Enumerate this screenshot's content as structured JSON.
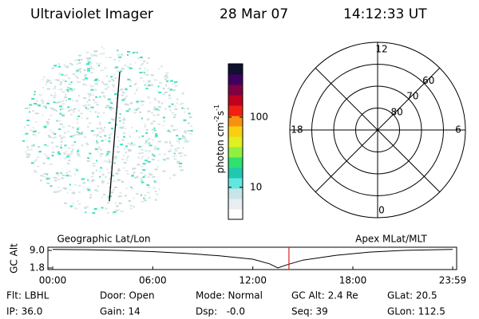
{
  "header": {
    "title": "Ultraviolet Imager",
    "date": "28 Mar 07",
    "time": "14:12:33 UT"
  },
  "colorbar": {
    "label": [
      "photon cm",
      "-2",
      "s",
      "-1"
    ],
    "log": true,
    "range": [
      3.5,
      575
    ],
    "ticks": [
      10,
      100
    ],
    "colors": [
      "#ffffff",
      "#e8eef0",
      "#c8e4e8",
      "#60e8e0",
      "#20c8b0",
      "#30e070",
      "#90f040",
      "#e0f020",
      "#f8d010",
      "#f89010",
      "#f02010",
      "#c00020",
      "#800040",
      "#400060",
      "#101030"
    ]
  },
  "polar": {
    "rlim": [
      90,
      50
    ],
    "rings": [
      60,
      70,
      80
    ],
    "hours": [
      12,
      18,
      6,
      0
    ]
  },
  "timeline": {
    "left_title": "Geographic Lat/Lon",
    "right_title": "Apex MLat/MLT",
    "ylabel": "GC Alt",
    "xlim": [
      0,
      1439
    ],
    "ylim": [
      1.15,
      10.3
    ],
    "xticks": [
      {
        "value": 0,
        "label": "00:00"
      },
      {
        "value": 360,
        "label": "06:00"
      },
      {
        "value": 720,
        "label": "12:00"
      },
      {
        "value": 1080,
        "label": "18:00"
      },
      {
        "value": 1439,
        "label": "23:59"
      }
    ],
    "yticks": [
      {
        "value": 9.0,
        "label": "9.0"
      },
      1.8
    ],
    "x": [
      0,
      120,
      240,
      360,
      480,
      600,
      720,
      780,
      810,
      840,
      900,
      1020,
      1140,
      1260,
      1380,
      1439
    ],
    "values": [
      9.4,
      9.3,
      9.0,
      8.5,
      7.8,
      6.8,
      5.4,
      3.5,
      1.8,
      3.0,
      5.0,
      7.0,
      8.3,
      9.0,
      9.3,
      9.4
    ],
    "marker": 850,
    "marker_color": "#e02020"
  },
  "footer": {
    "rows": [
      [
        "Flt: LBHL",
        "Door: Open",
        "Mode: Normal",
        "GC Alt: 2.4 Re",
        "GLat: 20.5"
      ],
      [
        "IP: 36.0",
        "Gain: 14",
        "Dsp:   -0.0",
        "Seq: 39",
        "GLon: 112.5"
      ]
    ]
  }
}
